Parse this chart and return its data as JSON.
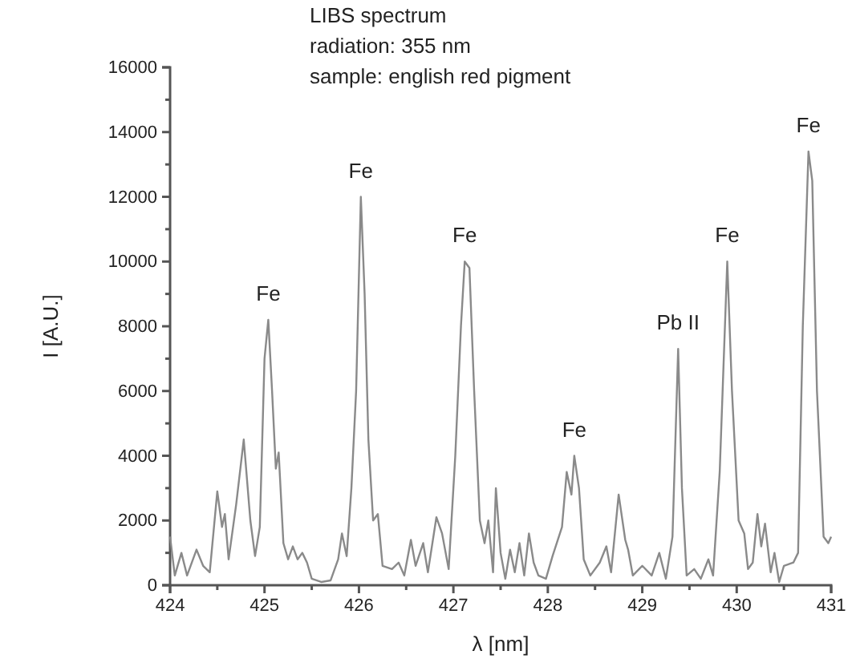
{
  "chart_data": {
    "type": "line",
    "xlabel": "λ [nm]",
    "ylabel": "I [A.U.]",
    "annotations": [
      "LIBS spectrum",
      "radiation: 355 nm",
      "sample: english red pigment",
      {
        "text": "Fe",
        "x": 425.04,
        "y": 8200
      },
      {
        "text": "Fe",
        "x": 426.02,
        "y": 12000
      },
      {
        "text": "Fe",
        "x": 427.12,
        "y": 10000
      },
      {
        "text": "Fe",
        "x": 428.28,
        "y": 4000
      },
      {
        "text": "Pb II",
        "x": 429.38,
        "y": 7300
      },
      {
        "text": "Fe",
        "x": 429.9,
        "y": 10000
      },
      {
        "text": "Fe",
        "x": 430.76,
        "y": 13400
      }
    ],
    "series": [
      {
        "color": "#8a8a8a",
        "x": [
          424.0,
          424.05,
          424.12,
          424.18,
          424.28,
          424.35,
          424.42,
          424.5,
          424.55,
          424.58,
          424.62,
          424.7,
          424.78,
          424.85,
          424.9,
          424.95,
          425.0,
          425.04,
          425.08,
          425.12,
          425.15,
          425.2,
          425.25,
          425.3,
          425.35,
          425.4,
          425.45,
          425.5,
          425.6,
          425.7,
          425.78,
          425.82,
          425.87,
          425.92,
          425.97,
          426.02,
          426.06,
          426.1,
          426.15,
          426.2,
          426.25,
          426.35,
          426.42,
          426.48,
          426.55,
          426.6,
          426.68,
          426.73,
          426.82,
          426.88,
          426.95,
          427.02,
          427.08,
          427.12,
          427.17,
          427.22,
          427.28,
          427.33,
          427.37,
          427.42,
          427.45,
          427.5,
          427.55,
          427.6,
          427.65,
          427.7,
          427.75,
          427.8,
          427.85,
          427.9,
          427.98,
          428.05,
          428.15,
          428.2,
          428.25,
          428.28,
          428.33,
          428.38,
          428.45,
          428.55,
          428.62,
          428.67,
          428.75,
          428.82,
          428.85,
          428.9,
          429.0,
          429.1,
          429.18,
          429.25,
          429.32,
          429.38,
          429.42,
          429.47,
          429.55,
          429.62,
          429.7,
          429.75,
          429.82,
          429.9,
          429.95,
          430.02,
          430.08,
          430.12,
          430.17,
          430.22,
          430.26,
          430.3,
          430.36,
          430.4,
          430.45,
          430.5,
          430.6,
          430.65,
          430.7,
          430.76,
          430.8,
          430.85,
          430.92,
          430.97,
          431.0
        ],
        "values": [
          1500,
          300,
          1000,
          300,
          1100,
          600,
          400,
          2900,
          1800,
          2200,
          800,
          2500,
          4500,
          2000,
          900,
          1800,
          7000,
          8200,
          6000,
          3600,
          4100,
          1300,
          800,
          1200,
          800,
          1000,
          700,
          200,
          100,
          150,
          800,
          1600,
          900,
          3000,
          6000,
          12000,
          9000,
          4500,
          2000,
          2200,
          600,
          500,
          700,
          300,
          1400,
          600,
          1300,
          400,
          2100,
          1600,
          500,
          4000,
          8000,
          10000,
          9800,
          6000,
          2000,
          1300,
          2000,
          400,
          3000,
          1000,
          200,
          1100,
          400,
          1300,
          300,
          1600,
          700,
          300,
          200,
          900,
          1800,
          3500,
          2800,
          4000,
          3000,
          800,
          300,
          700,
          1200,
          400,
          2800,
          1400,
          1100,
          300,
          600,
          300,
          1000,
          200,
          1500,
          7300,
          3000,
          300,
          500,
          200,
          800,
          300,
          3500,
          10000,
          6000,
          2000,
          1600,
          500,
          700,
          2200,
          1200,
          1900,
          400,
          1000,
          100,
          600,
          700,
          1000,
          8000,
          13400,
          12500,
          6000,
          1500,
          1300,
          1500
        ]
      }
    ],
    "xlim": [
      424,
      431
    ],
    "xticks": [
      424,
      {
        "value": 424.5,
        "label": null
      },
      425,
      {
        "value": 425.5,
        "label": null
      },
      426,
      {
        "value": 426.5,
        "label": null
      },
      427,
      {
        "value": 427.5,
        "label": null
      },
      428,
      {
        "value": 428.5,
        "label": null
      },
      429,
      {
        "value": 429.5,
        "label": null
      },
      430,
      {
        "value": 430.5,
        "label": null
      },
      431
    ],
    "ylim": [
      0,
      16000
    ],
    "yticks": [
      0,
      {
        "value": 1000,
        "label": null
      },
      2000,
      {
        "value": 3000,
        "label": null
      },
      4000,
      {
        "value": 5000,
        "label": null
      },
      6000,
      {
        "value": 7000,
        "label": null
      },
      8000,
      {
        "value": 9000,
        "label": null
      },
      10000,
      {
        "value": 11000,
        "label": null
      },
      12000,
      {
        "value": 13000,
        "label": null
      },
      14000,
      {
        "value": 15000,
        "label": null
      },
      16000
    ],
    "grid": false,
    "marker": "none",
    "line_style": "solid"
  }
}
